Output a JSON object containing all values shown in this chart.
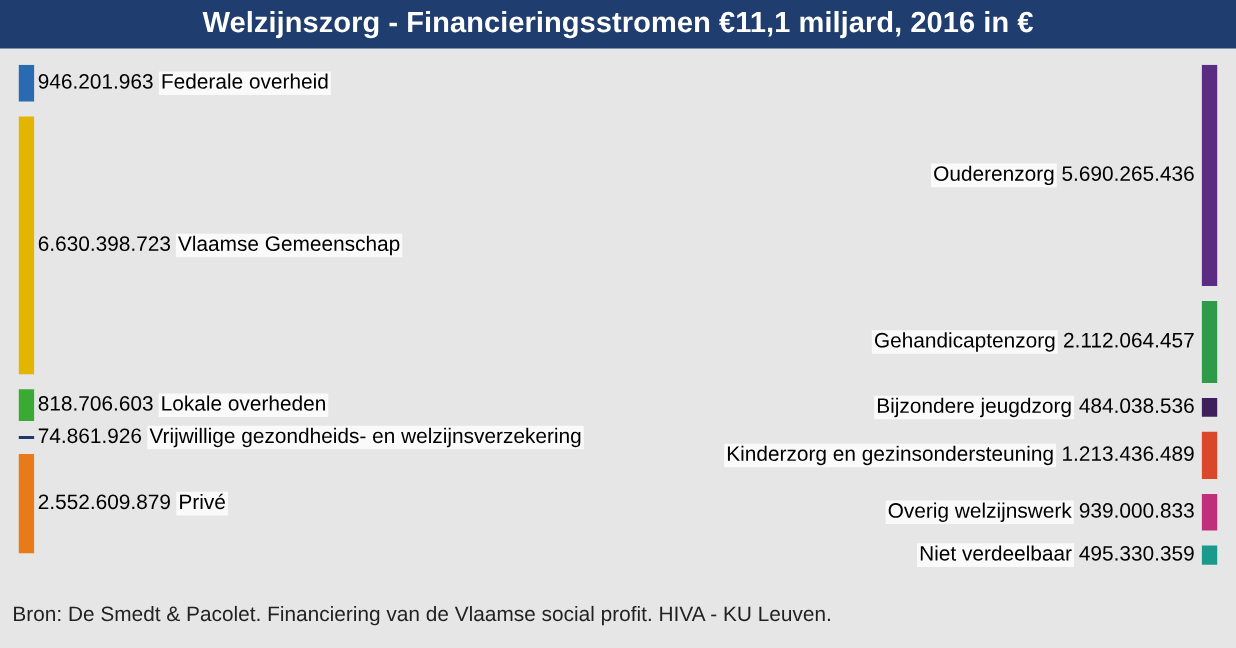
{
  "chart_data": {
    "type": "other",
    "title": "Welzijnszorg - Financieringsstromen €11,1 miljard, 2016 in €",
    "categories": [
      "Federale overheid",
      "Vlaamse Gemeenschap",
      "Lokale overheden",
      "Vrijwillige gezondheids- en welzijnsverzekering",
      "Privé",
      "Ouderenzorg",
      "Gehandicaptenzorg",
      "Bijzondere jeugdzorg",
      "Kinderzorg en gezinsondersteuning",
      "Overig welzijnswerk",
      "Niet verdeelbaar"
    ],
    "series": [
      {
        "values": [
          946201963,
          6630398723,
          818706603,
          74861926,
          2552609879,
          null,
          null,
          null,
          null,
          null,
          null
        ],
        "colors": [
          "#2a6ab0",
          "#e3b400",
          "#3aaa35",
          "#1a3a6a",
          "#e87a1a",
          null,
          null,
          null,
          null,
          null,
          null
        ],
        "value_labels": [
          "946.201.963",
          "6.630.398.723",
          "818.706.603",
          "74.861.926",
          "2.552.609.879",
          null,
          null,
          null,
          null,
          null,
          null
        ]
      },
      {
        "values": [
          null,
          null,
          null,
          null,
          null,
          5690265436,
          2112064457,
          484038536,
          1213436489,
          939000833,
          495330359
        ],
        "colors": [
          null,
          null,
          null,
          null,
          null,
          "#5a2d82",
          "#2e9a4a",
          "#3d1f5e",
          "#d9482b",
          "#c0307a",
          "#1a9a8a"
        ],
        "value_labels": [
          null,
          null,
          null,
          null,
          null,
          "5.690.265.436",
          "2.112.064.457",
          "484.038.536",
          "1.213.436.489",
          "939.000.833",
          "495.330.359"
        ]
      }
    ],
    "annotations": [
      "Bron: De Smedt & Pacolet. Financiering van de Vlaamse social profit. HIVA - KU Leuven."
    ]
  }
}
